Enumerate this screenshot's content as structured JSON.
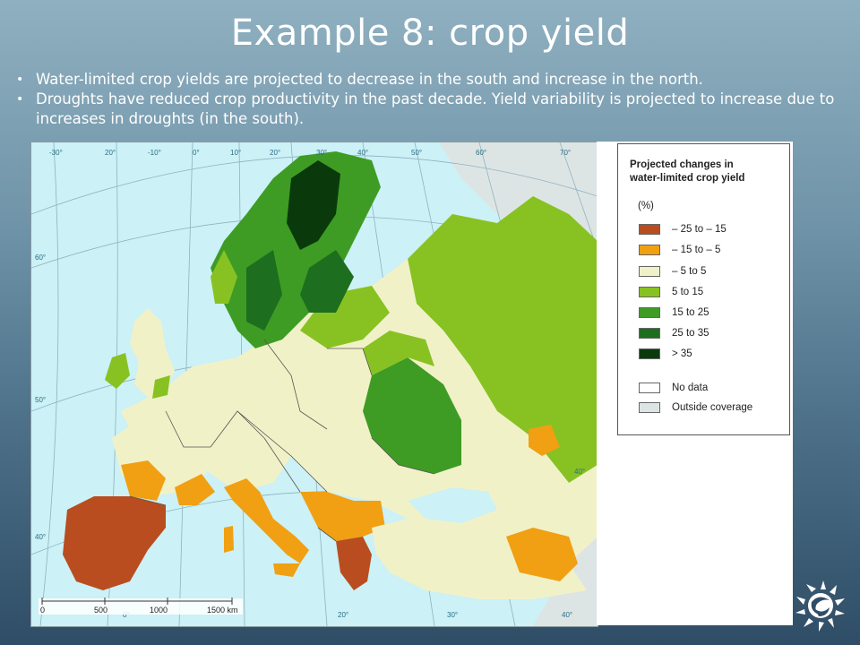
{
  "title": "Example 8: crop yield",
  "bullets": [
    "Water-limited crop yields are projected to decrease in the south and increase in the north.",
    "Droughts have reduced crop productivity in the past decade. Yield variability is projected to increase due to increases in droughts (in the south)."
  ],
  "map": {
    "water_color": "#ccf1f6",
    "outside_color": "#dde5e4",
    "graticule_longitudes": [
      "-30°",
      "20°",
      "-10°",
      "0°",
      "10°",
      "20°",
      "30°",
      "40°",
      "50°",
      "60°",
      "70°"
    ],
    "graticule_latitudes": [
      "60°",
      "50°",
      "40°",
      "40°"
    ],
    "bottom_longitudes": [
      "0°",
      "20°",
      "30°",
      "40°"
    ],
    "scale_bar": {
      "ticks": [
        "0",
        "500",
        "1000",
        "1500 km"
      ]
    }
  },
  "legend": {
    "title_line1": "Projected changes in",
    "title_line2": "water-limited crop yield",
    "unit": "(%)",
    "items": [
      {
        "label": "– 25 to – 15",
        "color": "#b94d1f"
      },
      {
        "label": "– 15 to – 5",
        "color": "#f0a012"
      },
      {
        "label": "– 5 to 5",
        "color": "#f1f1c8"
      },
      {
        "label": "5 to 15",
        "color": "#88c222"
      },
      {
        "label": "15 to 25",
        "color": "#3e9c24"
      },
      {
        "label": "25 to 35",
        "color": "#1d6e1f"
      },
      {
        "label": "> 35",
        "color": "#0a3a0c"
      }
    ],
    "extra_items": [
      {
        "label": "No data",
        "color": "#ffffff"
      },
      {
        "label": "Outside coverage",
        "color": "#dde5e4"
      }
    ]
  },
  "logo_icon": "eea-sun-logo-icon"
}
